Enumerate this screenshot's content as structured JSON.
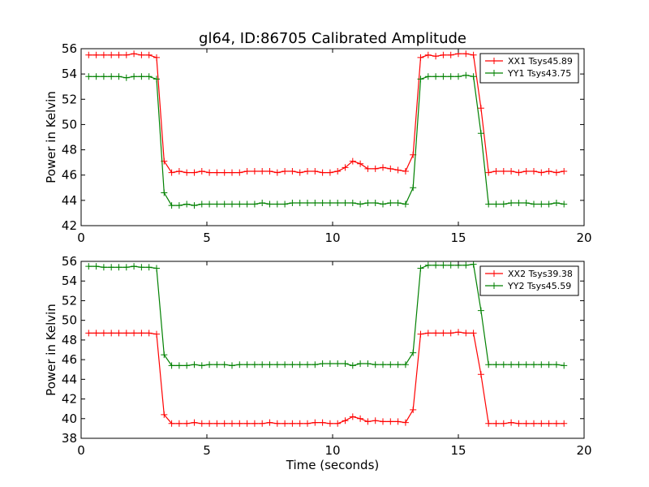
{
  "figure": {
    "title": "gl64, ID:86705 Calibrated Amplitude"
  },
  "chart_data": [
    {
      "type": "line",
      "title": "gl64, ID:86705 Calibrated Amplitude",
      "xlabel": "",
      "ylabel": "Power in Kelvin",
      "xlim": [
        0,
        20
      ],
      "ylim": [
        42,
        56
      ],
      "xticks": [
        0,
        5,
        10,
        15,
        20
      ],
      "yticks": [
        42,
        44,
        46,
        48,
        50,
        52,
        54,
        56
      ],
      "grid": false,
      "legend_position": "top-right",
      "x": [
        0.3,
        0.6,
        0.9,
        1.2,
        1.5,
        1.8,
        2.1,
        2.4,
        2.7,
        3.0,
        3.3,
        3.6,
        3.9,
        4.2,
        4.5,
        4.8,
        5.1,
        5.4,
        5.7,
        6.0,
        6.3,
        6.6,
        6.9,
        7.2,
        7.5,
        7.8,
        8.1,
        8.4,
        8.7,
        9.0,
        9.3,
        9.6,
        9.9,
        10.2,
        10.5,
        10.8,
        11.1,
        11.4,
        11.7,
        12.0,
        12.3,
        12.6,
        12.9,
        13.2,
        13.5,
        13.8,
        14.1,
        14.4,
        14.7,
        15.0,
        15.3,
        15.6,
        15.9,
        16.2,
        16.5,
        16.8,
        17.1,
        17.4,
        17.7,
        18.0,
        18.3,
        18.6,
        18.9,
        19.2
      ],
      "series": [
        {
          "name": "XX1 Tsys45.89",
          "color": "#ff0000",
          "values": [
            55.5,
            55.5,
            55.5,
            55.5,
            55.5,
            55.5,
            55.6,
            55.5,
            55.5,
            55.3,
            47.1,
            46.2,
            46.3,
            46.2,
            46.2,
            46.3,
            46.2,
            46.2,
            46.2,
            46.2,
            46.2,
            46.3,
            46.3,
            46.3,
            46.3,
            46.2,
            46.3,
            46.3,
            46.2,
            46.3,
            46.3,
            46.2,
            46.2,
            46.3,
            46.6,
            47.1,
            46.9,
            46.5,
            46.5,
            46.6,
            46.5,
            46.4,
            46.3,
            47.6,
            55.3,
            55.5,
            55.4,
            55.5,
            55.5,
            55.6,
            55.6,
            55.5,
            51.3,
            46.2,
            46.3,
            46.3,
            46.3,
            46.2,
            46.3,
            46.3,
            46.2,
            46.3,
            46.2,
            46.3
          ]
        },
        {
          "name": "YY1 Tsys43.75",
          "color": "#008000",
          "values": [
            53.8,
            53.8,
            53.8,
            53.8,
            53.8,
            53.7,
            53.8,
            53.8,
            53.8,
            53.6,
            44.6,
            43.6,
            43.6,
            43.7,
            43.6,
            43.7,
            43.7,
            43.7,
            43.7,
            43.7,
            43.7,
            43.7,
            43.7,
            43.8,
            43.7,
            43.7,
            43.7,
            43.8,
            43.8,
            43.8,
            43.8,
            43.8,
            43.8,
            43.8,
            43.8,
            43.8,
            43.7,
            43.8,
            43.8,
            43.7,
            43.8,
            43.8,
            43.7,
            45.0,
            53.6,
            53.8,
            53.8,
            53.8,
            53.8,
            53.8,
            53.9,
            53.8,
            49.3,
            43.7,
            43.7,
            43.7,
            43.8,
            43.8,
            43.8,
            43.7,
            43.7,
            43.7,
            43.8,
            43.7
          ]
        }
      ]
    },
    {
      "type": "line",
      "title": "",
      "xlabel": "Time (seconds)",
      "ylabel": "Power in Kelvin",
      "xlim": [
        0,
        20
      ],
      "ylim": [
        38,
        56
      ],
      "xticks": [
        0,
        5,
        10,
        15,
        20
      ],
      "yticks": [
        38,
        40,
        42,
        44,
        46,
        48,
        50,
        52,
        54,
        56
      ],
      "grid": false,
      "legend_position": "top-right",
      "x": [
        0.3,
        0.6,
        0.9,
        1.2,
        1.5,
        1.8,
        2.1,
        2.4,
        2.7,
        3.0,
        3.3,
        3.6,
        3.9,
        4.2,
        4.5,
        4.8,
        5.1,
        5.4,
        5.7,
        6.0,
        6.3,
        6.6,
        6.9,
        7.2,
        7.5,
        7.8,
        8.1,
        8.4,
        8.7,
        9.0,
        9.3,
        9.6,
        9.9,
        10.2,
        10.5,
        10.8,
        11.1,
        11.4,
        11.7,
        12.0,
        12.3,
        12.6,
        12.9,
        13.2,
        13.5,
        13.8,
        14.1,
        14.4,
        14.7,
        15.0,
        15.3,
        15.6,
        15.9,
        16.2,
        16.5,
        16.8,
        17.1,
        17.4,
        17.7,
        18.0,
        18.3,
        18.6,
        18.9,
        19.2
      ],
      "series": [
        {
          "name": "XX2 Tsys39.38",
          "color": "#ff0000",
          "values": [
            48.7,
            48.7,
            48.7,
            48.7,
            48.7,
            48.7,
            48.7,
            48.7,
            48.7,
            48.6,
            40.4,
            39.5,
            39.5,
            39.5,
            39.6,
            39.5,
            39.5,
            39.5,
            39.5,
            39.5,
            39.5,
            39.5,
            39.5,
            39.5,
            39.6,
            39.5,
            39.5,
            39.5,
            39.5,
            39.5,
            39.6,
            39.6,
            39.5,
            39.5,
            39.8,
            40.2,
            40.0,
            39.7,
            39.8,
            39.7,
            39.7,
            39.7,
            39.6,
            40.9,
            48.6,
            48.7,
            48.7,
            48.7,
            48.7,
            48.8,
            48.7,
            48.7,
            44.5,
            39.5,
            39.5,
            39.5,
            39.6,
            39.5,
            39.5,
            39.5,
            39.5,
            39.5,
            39.5,
            39.5
          ]
        },
        {
          "name": "YY2 Tsys45.59",
          "color": "#008000",
          "values": [
            55.5,
            55.5,
            55.4,
            55.4,
            55.4,
            55.4,
            55.5,
            55.4,
            55.4,
            55.3,
            46.5,
            45.4,
            45.4,
            45.4,
            45.5,
            45.4,
            45.5,
            45.5,
            45.5,
            45.4,
            45.5,
            45.5,
            45.5,
            45.5,
            45.5,
            45.5,
            45.5,
            45.5,
            45.5,
            45.5,
            45.5,
            45.6,
            45.6,
            45.6,
            45.6,
            45.4,
            45.6,
            45.6,
            45.5,
            45.5,
            45.5,
            45.5,
            45.5,
            46.7,
            55.3,
            55.6,
            55.6,
            55.6,
            55.6,
            55.6,
            55.6,
            55.7,
            51.0,
            45.5,
            45.5,
            45.5,
            45.5,
            45.5,
            45.5,
            45.5,
            45.5,
            45.5,
            45.5,
            45.4
          ]
        }
      ]
    }
  ]
}
